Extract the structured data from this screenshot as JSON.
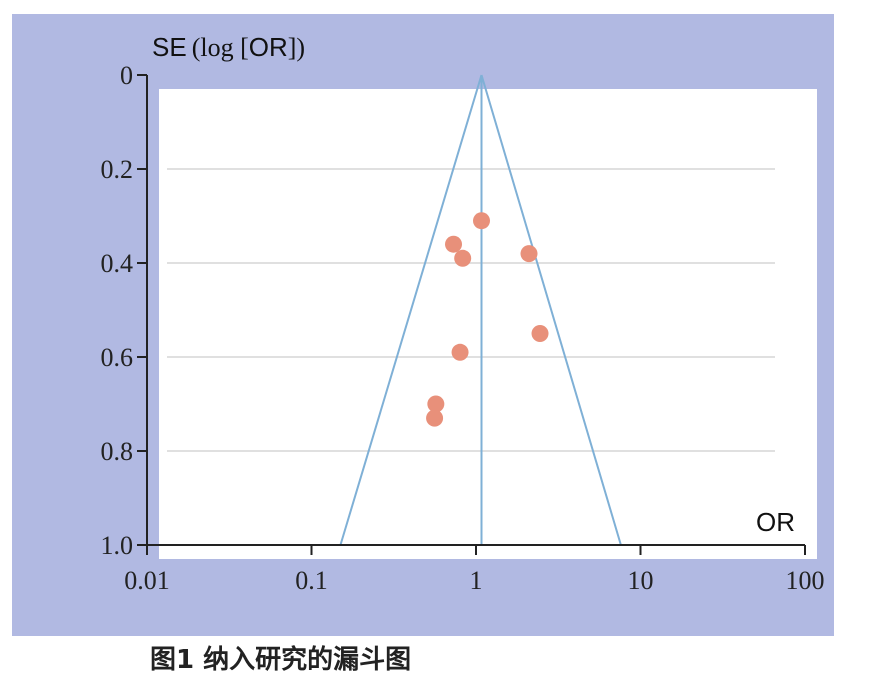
{
  "chart_data": {
    "type": "scatter",
    "title": "",
    "ylabel_sans": "SE",
    "ylabel_serif": "(log [",
    "ylabel_sans2": "OR",
    "ylabel_serif2": "])",
    "xlabel": "OR",
    "x_scale": "log",
    "xlim": [
      0.01,
      100
    ],
    "ylim": [
      0,
      1.0
    ],
    "y_inverted": true,
    "x_ticks": [
      0.01,
      0.1,
      1,
      10,
      100
    ],
    "x_tick_labels": [
      "0.01",
      "0.1",
      "1",
      "10",
      "100"
    ],
    "y_ticks": [
      0,
      0.2,
      0.4,
      0.6,
      0.8,
      1.0
    ],
    "y_tick_labels": [
      "0",
      "0.2",
      "0.4",
      "0.6",
      "0.8",
      "1.0"
    ],
    "grid": "horizontal",
    "pooled_or": 1.08,
    "funnel_lower_at_se1": 0.15,
    "funnel_upper_at_se1": 7.6,
    "points": [
      {
        "x": 1.08,
        "y": 0.31
      },
      {
        "x": 0.73,
        "y": 0.36
      },
      {
        "x": 0.83,
        "y": 0.39
      },
      {
        "x": 2.1,
        "y": 0.38
      },
      {
        "x": 2.45,
        "y": 0.55
      },
      {
        "x": 0.8,
        "y": 0.59
      },
      {
        "x": 0.57,
        "y": 0.7
      },
      {
        "x": 0.56,
        "y": 0.73
      }
    ],
    "colors": {
      "background": "#b1b9e2",
      "funnel": "#7fb0d6",
      "points": "#e8907a",
      "grid": "#d5d5d5",
      "axis": "#222222"
    }
  },
  "caption": "图1  纳入研究的漏斗图"
}
